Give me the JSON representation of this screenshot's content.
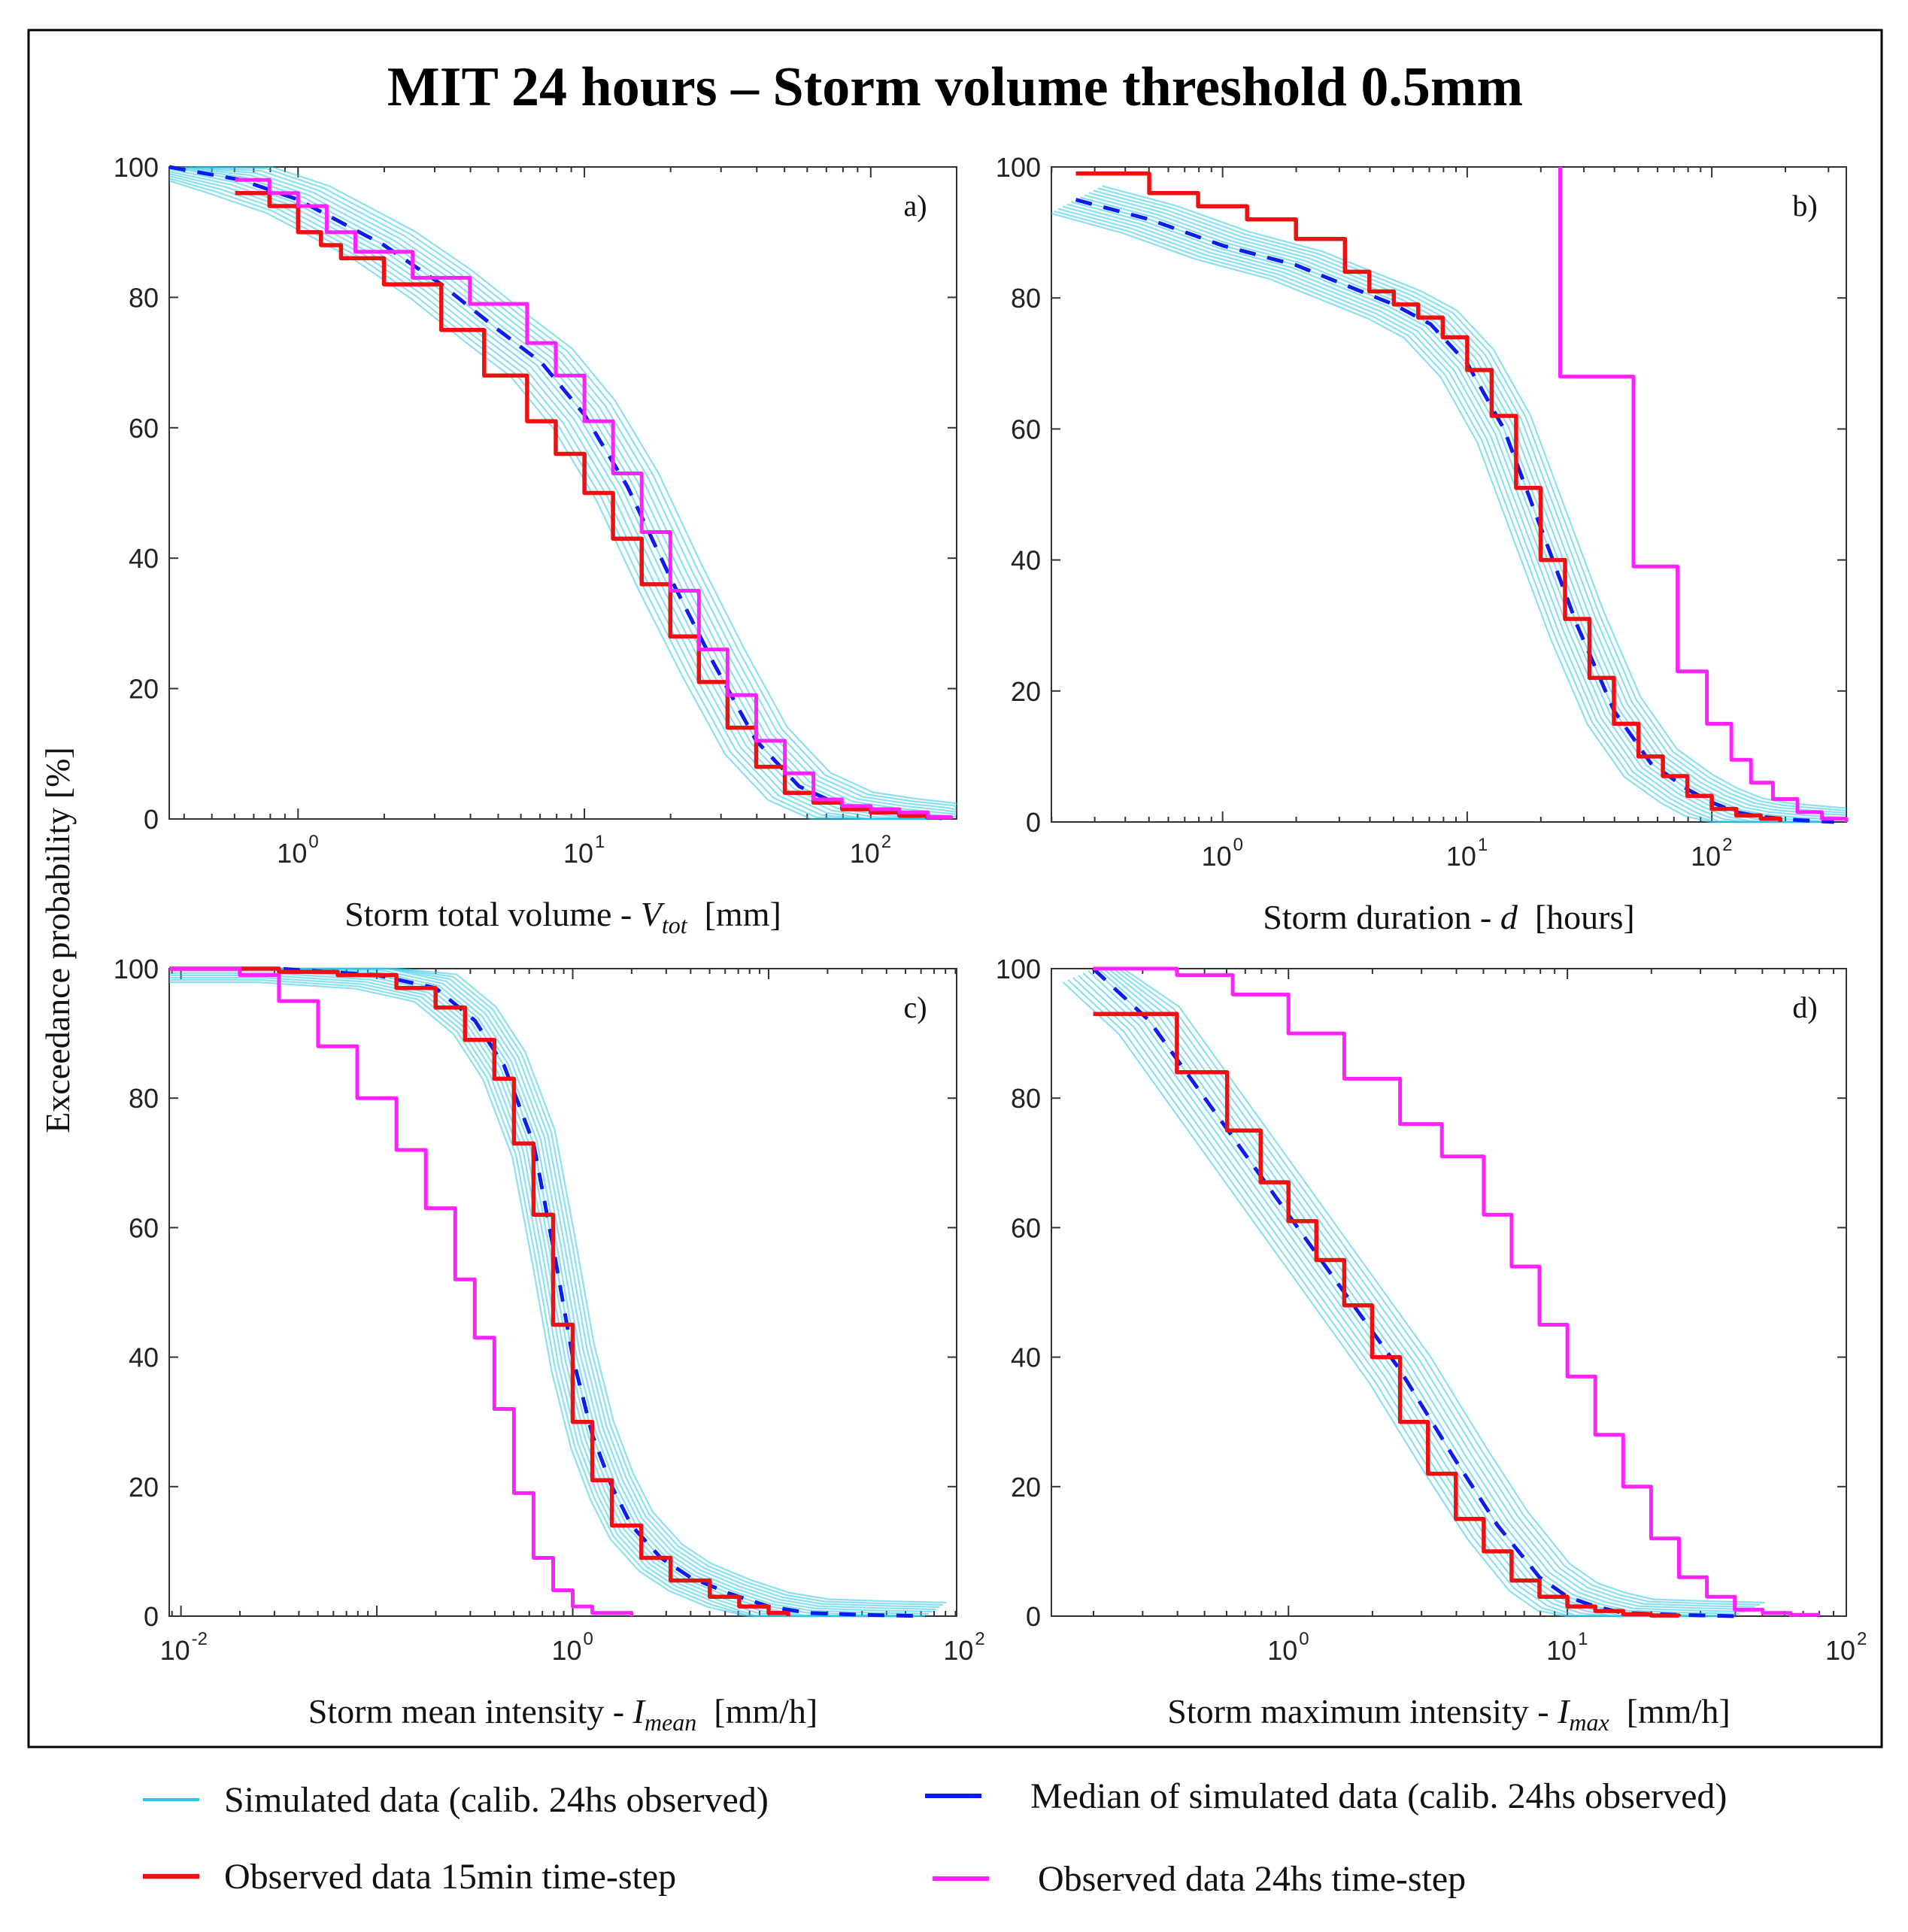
{
  "figure_title": "MIT 24 hours – Storm volume threshold 0.5mm",
  "ylabel": "Exceedance probability [%]",
  "colors": {
    "simulated": "#29c4e8",
    "median": "#0a1cf0",
    "observed_15min": "#ee1111",
    "observed_24h": "#ff22ff",
    "axis": "#333333"
  },
  "legend": [
    {
      "label": "Simulated data (calib. 24hs observed)",
      "series": "simulated"
    },
    {
      "label": "Median of simulated data (calib. 24hs observed)",
      "series": "median"
    },
    {
      "label": "Observed data 15min time-step",
      "series": "observed_15min"
    },
    {
      "label": "Observed data 24hs time-step",
      "series": "observed_24h"
    }
  ],
  "chart_data": [
    {
      "type": "line",
      "panel": "a)",
      "xlabel_prefix": "Storm total volume - ",
      "xlabel_var": "V",
      "xlabel_sub": "tot",
      "xlabel_unit": "[mm]",
      "xscale": "log",
      "xlim_log10": [
        -0.45,
        2.3
      ],
      "ylim": [
        0,
        100
      ],
      "xticks": [
        {
          "label": "10",
          "exp": "0",
          "log10": 0
        },
        {
          "label": "10",
          "exp": "1",
          "log10": 1
        },
        {
          "label": "10",
          "exp": "2",
          "log10": 2
        }
      ],
      "yticks": [
        0,
        20,
        40,
        60,
        80,
        100
      ],
      "series": [
        {
          "name": "median",
          "style": "dashed",
          "step": false,
          "log10_x": [
            -0.45,
            -0.2,
            0,
            0.3,
            0.5,
            0.7,
            0.85,
            1.0,
            1.15,
            1.3,
            1.45,
            1.6,
            1.75,
            1.9,
            2.05,
            2.2,
            2.28
          ],
          "y": [
            100,
            98,
            95,
            88,
            82,
            75,
            70,
            62,
            51,
            37,
            24,
            12,
            5,
            2,
            1,
            0.3,
            0
          ]
        },
        {
          "name": "observed_15min",
          "style": "solid",
          "step": true,
          "log10_x": [
            -0.22,
            -0.1,
            0,
            0.08,
            0.15,
            0.3,
            0.5,
            0.65,
            0.8,
            0.9,
            1.0,
            1.1,
            1.2,
            1.3,
            1.4,
            1.5,
            1.6,
            1.7,
            1.8,
            1.9,
            2.0,
            2.1,
            2.2,
            2.28
          ],
          "y": [
            96,
            94,
            90,
            88,
            86,
            82,
            75,
            68,
            61,
            56,
            50,
            43,
            36,
            28,
            21,
            14,
            8,
            4,
            2.5,
            1.5,
            1,
            0.5,
            0.2,
            0
          ]
        },
        {
          "name": "observed_24h",
          "style": "solid",
          "step": true,
          "log10_x": [
            -0.22,
            -0.1,
            0,
            0.1,
            0.2,
            0.4,
            0.6,
            0.8,
            0.9,
            1.0,
            1.1,
            1.2,
            1.3,
            1.4,
            1.5,
            1.6,
            1.7,
            1.8,
            1.9,
            2.0,
            2.1,
            2.2,
            2.28
          ],
          "y": [
            98,
            96,
            94,
            90,
            87,
            83,
            79,
            73,
            68,
            61,
            53,
            44,
            35,
            26,
            19,
            12,
            7,
            3,
            2,
            1.5,
            1,
            0.3,
            0
          ]
        }
      ]
    },
    {
      "type": "line",
      "panel": "b)",
      "xlabel_prefix": "Storm duration - ",
      "xlabel_var": "d",
      "xlabel_sub": "",
      "xlabel_unit": "[hours]",
      "xscale": "log",
      "xlim_log10": [
        -0.7,
        2.55
      ],
      "ylim": [
        0,
        100
      ],
      "xticks": [
        {
          "label": "10",
          "exp": "0",
          "log10": 0
        },
        {
          "label": "10",
          "exp": "1",
          "log10": 1
        },
        {
          "label": "10",
          "exp": "2",
          "log10": 2
        }
      ],
      "yticks": [
        0,
        20,
        40,
        60,
        80,
        100
      ],
      "series": [
        {
          "name": "median",
          "style": "dashed",
          "step": false,
          "log10_x": [
            -0.6,
            -0.3,
            0,
            0.3,
            0.5,
            0.7,
            0.85,
            1.0,
            1.15,
            1.3,
            1.45,
            1.6,
            1.75,
            1.9,
            2.0,
            2.1,
            2.2,
            2.35,
            2.5
          ],
          "y": [
            95,
            92,
            88,
            85,
            82,
            79,
            76,
            70,
            60,
            45,
            30,
            17,
            9,
            5,
            3,
            1.5,
            0.8,
            0.3,
            0
          ]
        },
        {
          "name": "observed_15min",
          "style": "solid",
          "step": true,
          "log10_x": [
            -0.6,
            -0.3,
            -0.1,
            0.1,
            0.3,
            0.5,
            0.6,
            0.7,
            0.8,
            0.9,
            1.0,
            1.1,
            1.2,
            1.3,
            1.4,
            1.5,
            1.6,
            1.7,
            1.8,
            1.9,
            2.0,
            2.1,
            2.2,
            2.28
          ],
          "y": [
            99,
            96,
            94,
            92,
            89,
            84,
            81,
            79,
            77,
            74,
            69,
            62,
            51,
            40,
            31,
            22,
            15,
            10,
            7,
            4,
            2,
            1,
            0.5,
            0
          ]
        },
        {
          "name": "observed_24h",
          "style": "solid",
          "step": true,
          "log10_x": [
            1.38,
            1.38,
            1.68,
            1.86,
            1.98,
            2.08,
            2.16,
            2.25,
            2.35,
            2.45,
            2.55
          ],
          "y": [
            100,
            68,
            39,
            23,
            15,
            9.5,
            6,
            3.5,
            1.5,
            0.5,
            0
          ]
        }
      ]
    },
    {
      "type": "line",
      "panel": "c)",
      "xlabel_prefix": "Storm mean intensity - ",
      "xlabel_var": "I",
      "xlabel_sub": "mean",
      "xlabel_unit": "[mm/h]",
      "xscale": "log",
      "xlim_log10": [
        -2.06,
        1.96
      ],
      "ylim": [
        0,
        100
      ],
      "xticks": [
        {
          "label": "10",
          "exp": "-2",
          "log10": -2
        },
        {
          "label": "10",
          "exp": "0",
          "log10": 0
        },
        {
          "label": "10",
          "exp": "2",
          "log10": 2
        }
      ],
      "yticks": [
        0,
        20,
        40,
        60,
        80,
        100
      ],
      "series": [
        {
          "name": "median",
          "style": "dashed",
          "step": false,
          "log10_x": [
            -2.06,
            -1.5,
            -1.0,
            -0.7,
            -0.5,
            -0.35,
            -0.2,
            -0.1,
            0,
            0.1,
            0.2,
            0.3,
            0.45,
            0.6,
            0.8,
            1.0,
            1.2,
            1.5,
            1.8
          ],
          "y": [
            100,
            100,
            99,
            97,
            92,
            85,
            73,
            57,
            40,
            28,
            20,
            14,
            9,
            6,
            3.5,
            1.5,
            0.5,
            0.2,
            0
          ]
        },
        {
          "name": "observed_15min",
          "style": "solid",
          "step": true,
          "log10_x": [
            -2.06,
            -1.5,
            -1.2,
            -0.9,
            -0.7,
            -0.55,
            -0.4,
            -0.3,
            -0.2,
            -0.1,
            0,
            0.1,
            0.2,
            0.35,
            0.5,
            0.7,
            0.85,
            1.0,
            1.1
          ],
          "y": [
            100,
            99.5,
            99,
            97,
            94,
            89,
            83,
            73,
            62,
            45,
            30,
            21,
            14,
            9,
            5.5,
            3,
            1.5,
            0.5,
            0
          ]
        },
        {
          "name": "observed_24h",
          "style": "solid",
          "step": true,
          "log10_x": [
            -2.06,
            -1.7,
            -1.5,
            -1.3,
            -1.1,
            -0.9,
            -0.75,
            -0.6,
            -0.5,
            -0.4,
            -0.3,
            -0.2,
            -0.1,
            0,
            0.1,
            0.3
          ],
          "y": [
            100,
            99,
            95,
            88,
            80,
            72,
            63,
            52,
            43,
            32,
            19,
            9,
            4,
            1.5,
            0.5,
            0
          ]
        }
      ]
    },
    {
      "type": "line",
      "panel": "d)",
      "xlabel_prefix": "Storm maximum intensity - ",
      "xlabel_var": "I",
      "xlabel_sub": "max",
      "xlabel_unit": "[mm/h]",
      "xscale": "log",
      "xlim_log10": [
        -0.85,
        2.0
      ],
      "ylim": [
        0,
        100
      ],
      "xticks": [
        {
          "label": "10",
          "exp": "0",
          "log10": 0
        },
        {
          "label": "10",
          "exp": "1",
          "log10": 1
        },
        {
          "label": "10",
          "exp": "2",
          "log10": 2
        }
      ],
      "yticks": [
        0,
        20,
        40,
        60,
        80,
        100
      ],
      "series": [
        {
          "name": "median",
          "style": "dashed",
          "step": false,
          "log10_x": [
            -0.7,
            -0.5,
            -0.3,
            -0.1,
            0,
            0.2,
            0.4,
            0.6,
            0.75,
            0.9,
            1.0,
            1.1,
            1.2,
            1.4,
            1.6
          ],
          "y": [
            100,
            92,
            80,
            68,
            62,
            50,
            38,
            24,
            14,
            6,
            3,
            1.5,
            0.5,
            0.2,
            0
          ]
        },
        {
          "name": "observed_15min",
          "style": "solid",
          "step": true,
          "log10_x": [
            -0.7,
            -0.4,
            -0.22,
            -0.1,
            0,
            0.1,
            0.2,
            0.3,
            0.4,
            0.5,
            0.6,
            0.7,
            0.8,
            0.9,
            1.0,
            1.1,
            1.2,
            1.3,
            1.4
          ],
          "y": [
            93,
            84,
            75,
            67,
            61,
            55,
            48,
            40,
            30,
            22,
            15,
            10,
            5.5,
            3,
            1.5,
            0.8,
            0.3,
            0.1,
            0
          ]
        },
        {
          "name": "observed_24h",
          "style": "solid",
          "step": true,
          "log10_x": [
            -0.7,
            -0.4,
            -0.2,
            0,
            0.2,
            0.4,
            0.55,
            0.7,
            0.8,
            0.9,
            1.0,
            1.1,
            1.2,
            1.3,
            1.4,
            1.5,
            1.6,
            1.7,
            1.8,
            1.9
          ],
          "y": [
            100,
            99,
            96,
            90,
            83,
            76,
            71,
            62,
            54,
            45,
            37,
            28,
            20,
            12,
            6,
            3,
            1,
            0.5,
            0.2,
            0
          ]
        }
      ]
    }
  ]
}
